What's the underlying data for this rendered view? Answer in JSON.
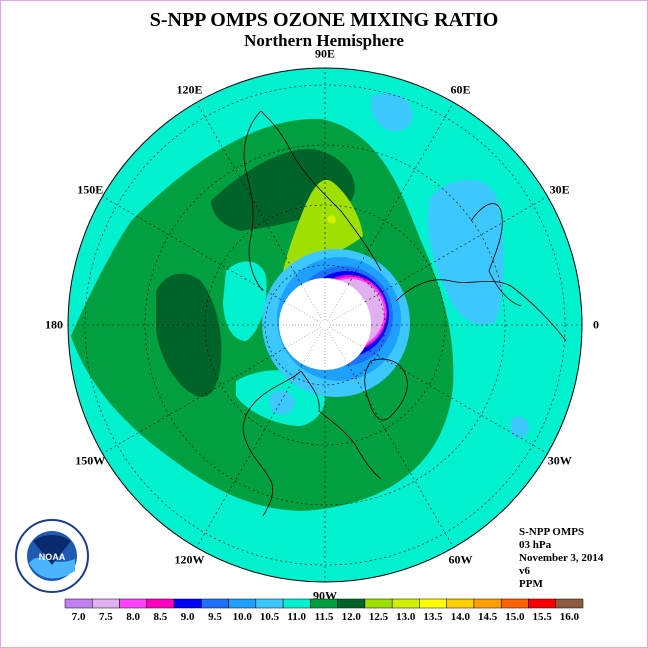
{
  "title": "S-NPP OMPS OZONE MIXING RATIO",
  "subtitle": "Northern Hemisphere",
  "longitude_labels": [
    {
      "text": "90E",
      "lon": 90
    },
    {
      "text": "60E",
      "lon": 60
    },
    {
      "text": "30E",
      "lon": 30
    },
    {
      "text": "0",
      "lon": 0
    },
    {
      "text": "30W",
      "lon": -30
    },
    {
      "text": "60W",
      "lon": -60
    },
    {
      "text": "90W",
      "lon": -90
    },
    {
      "text": "120W",
      "lon": -120
    },
    {
      "text": "150W",
      "lon": -150
    },
    {
      "text": "180",
      "lon": 180
    },
    {
      "text": "150E",
      "lon": 150
    },
    {
      "text": "120E",
      "lon": 120
    }
  ],
  "info": {
    "instrument": "S-NPP OMPS",
    "pressure": "03 hPa",
    "date": "November 3, 2014",
    "version": "v6",
    "units": "PPM"
  },
  "colorbar": {
    "labels": [
      "7.0",
      "7.5",
      "8.0",
      "8.5",
      "9.0",
      "9.5",
      "10.0",
      "10.5",
      "11.0",
      "11.5",
      "12.0",
      "12.5",
      "13.0",
      "13.5",
      "14.0",
      "14.5",
      "15.0",
      "15.5",
      "16.0"
    ],
    "colors": [
      "#c080f0",
      "#e0b0f0",
      "#ff40ff",
      "#ff00c0",
      "#0000ff",
      "#1e70ff",
      "#1ea0ff",
      "#3cc8ff",
      "#00f0d0",
      "#00a040",
      "#006428",
      "#a0e000",
      "#d0f000",
      "#ffff00",
      "#ffd000",
      "#ffa000",
      "#ff6000",
      "#ff0000",
      "#8c5a3c"
    ]
  },
  "logo": {
    "text": "NOAA",
    "ring_text": "NATIONAL OCEANIC AND ATMOSPHERIC ADMINISTRATION · U.S. DEPARTMENT OF COMMERCE"
  }
}
